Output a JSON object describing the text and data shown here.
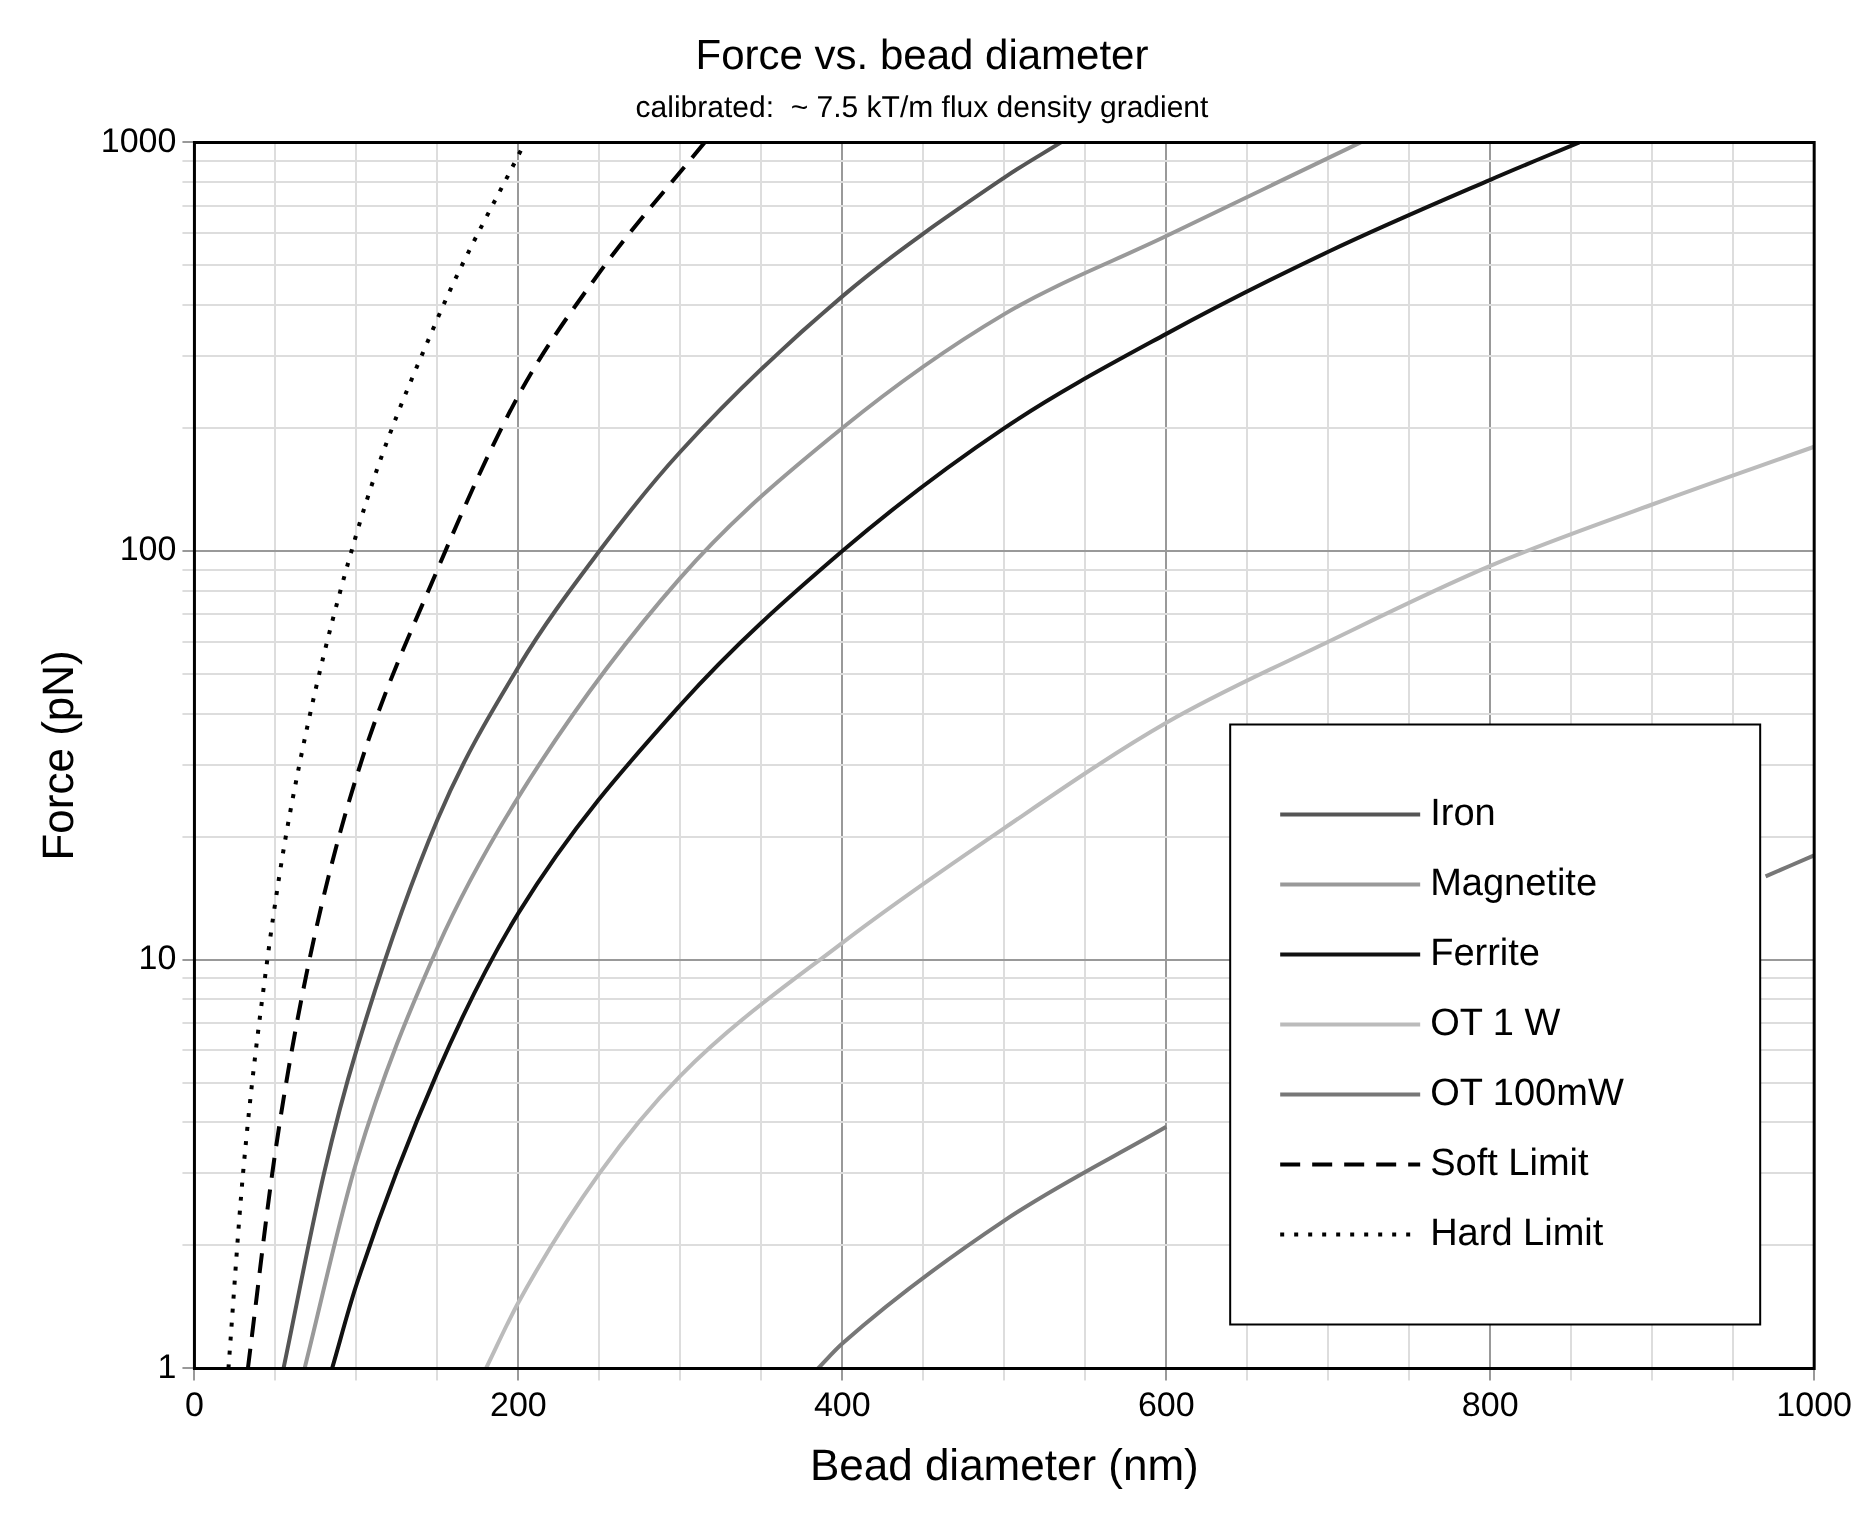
{
  "chart_data": {
    "type": "line",
    "title": "Force vs. bead diameter",
    "subtitle": "calibrated:  ~ 7.5 kT/m flux density gradient",
    "xlabel": "Bead diameter (nm)",
    "ylabel": "Force (pN)",
    "log": "y",
    "grid": true,
    "legend": "bottom right",
    "marker": "none",
    "xlim": [
      0,
      1000
    ],
    "ylim": [
      1,
      1000
    ],
    "xticks": [
      0,
      {
        "value": 50,
        "label": null
      },
      {
        "value": 100,
        "label": null
      },
      {
        "value": 150,
        "label": null
      },
      200,
      {
        "value": 250,
        "label": null
      },
      {
        "value": 300,
        "label": null
      },
      {
        "value": 350,
        "label": null
      },
      400,
      {
        "value": 450,
        "label": null
      },
      {
        "value": 500,
        "label": null
      },
      {
        "value": 550,
        "label": null
      },
      600,
      {
        "value": 650,
        "label": null
      },
      {
        "value": 700,
        "label": null
      },
      {
        "value": 750,
        "label": null
      },
      800,
      {
        "value": 850,
        "label": null
      },
      {
        "value": 900,
        "label": null
      },
      {
        "value": 950,
        "label": null
      },
      1000
    ],
    "yticks": [
      1,
      {
        "value": 2,
        "label": null
      },
      {
        "value": 3,
        "label": null
      },
      {
        "value": 4,
        "label": null
      },
      {
        "value": 5,
        "label": null
      },
      {
        "value": 6,
        "label": null
      },
      {
        "value": 7,
        "label": null
      },
      {
        "value": 8,
        "label": null
      },
      {
        "value": 9,
        "label": null
      },
      10,
      {
        "value": 20,
        "label": null
      },
      {
        "value": 30,
        "label": null
      },
      {
        "value": 40,
        "label": null
      },
      {
        "value": 50,
        "label": null
      },
      {
        "value": 60,
        "label": null
      },
      {
        "value": 70,
        "label": null
      },
      {
        "value": 80,
        "label": null
      },
      {
        "value": 90,
        "label": null
      },
      100,
      {
        "value": 200,
        "label": null
      },
      {
        "value": 300,
        "label": null
      },
      {
        "value": 400,
        "label": null
      },
      {
        "value": 500,
        "label": null
      },
      {
        "value": 600,
        "label": null
      },
      {
        "value": 700,
        "label": null
      },
      {
        "value": 800,
        "label": null
      },
      {
        "value": 900,
        "label": null
      },
      1000
    ],
    "series": [
      {
        "name": "Iron",
        "color": "#555555",
        "line_style": "solid",
        "x": [
          55,
          80,
          100,
          150,
          200,
          250,
          300,
          400,
          500,
          535
        ],
        "values": [
          1,
          3,
          6,
          22,
          52,
          100,
          175,
          420,
          820,
          1000
        ]
      },
      {
        "name": "Magnetite",
        "color": "#999999",
        "line_style": "solid",
        "x": [
          68,
          100,
          150,
          200,
          300,
          400,
          500,
          600,
          720
        ],
        "values": [
          1,
          3.2,
          10.7,
          25,
          86,
          200,
          380,
          590,
          1000
        ]
      },
      {
        "name": "Ferrite",
        "color": "#111111",
        "line_style": "solid",
        "x": [
          85,
          100,
          150,
          200,
          300,
          400,
          500,
          600,
          700,
          800,
          855
        ],
        "values": [
          1,
          1.6,
          5.3,
          13,
          42,
          100,
          200,
          340,
          540,
          810,
          1000
        ]
      },
      {
        "name": "OT 1 W",
        "color": "#bbbbbb",
        "line_style": "solid",
        "x": [
          180,
          200,
          250,
          300,
          400,
          500,
          600,
          700,
          800,
          900,
          1000
        ],
        "values": [
          1,
          1.45,
          3,
          5.2,
          11,
          21,
          38,
          60,
          92,
          130,
          180
        ]
      },
      {
        "name": "OT 100mW",
        "color": "#777777",
        "line_style": "solid",
        "x": [
          385,
          400,
          500,
          600,
          700,
          800,
          900,
          970,
          1000
        ],
        "values": [
          1,
          1.15,
          2.3,
          3.9,
          null,
          null,
          null,
          16,
          18
        ]
      },
      {
        "name": "Soft Limit",
        "color": "#000000",
        "line_style": "dashed",
        "x": [
          33,
          50,
          71,
          100,
          150,
          200,
          250,
          315
        ],
        "values": [
          1,
          3.4,
          10,
          28,
          90,
          240,
          480,
          1000
        ]
      },
      {
        "name": "Hard Limit",
        "color": "#000000",
        "line_style": "dotted",
        "x": [
          21,
          30,
          45,
          60,
          100,
          150,
          204
        ],
        "values": [
          1,
          3,
          10,
          24,
          110,
          370,
          1000
        ]
      }
    ]
  }
}
